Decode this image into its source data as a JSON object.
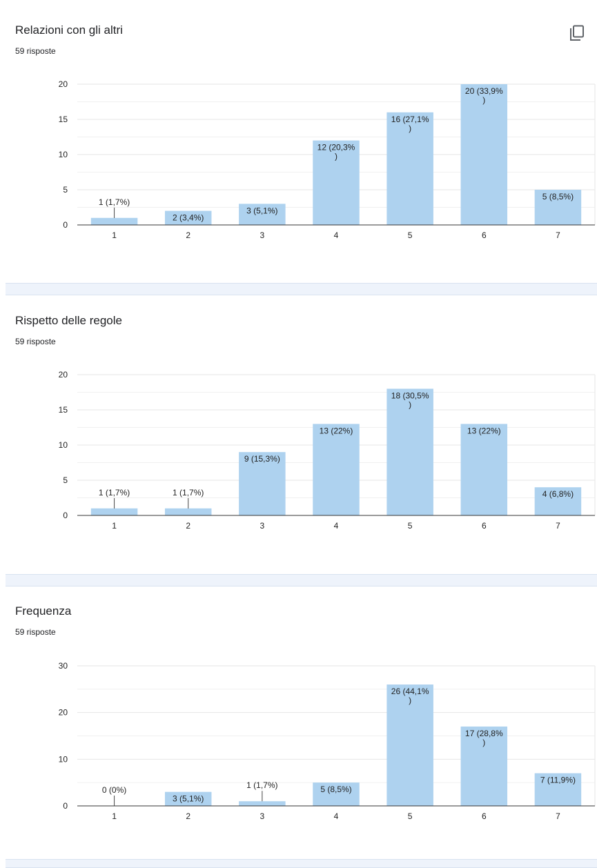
{
  "charts": [
    {
      "title": "Relazioni con gli altri",
      "responses": "59 risposte"
    },
    {
      "title": "Rispetto delle regole",
      "responses": "59 risposte"
    },
    {
      "title": "Frequenza",
      "responses": "59 risposte"
    }
  ],
  "icons": {
    "copy": "copy-icon"
  },
  "colors": {
    "bar": "#aed2ef",
    "grid": "#e6e6e6",
    "axis": "#333333",
    "separator": "#eef3fb"
  },
  "chart_data": [
    {
      "type": "bar",
      "title": "Relazioni con gli altri",
      "categories": [
        "1",
        "2",
        "3",
        "4",
        "5",
        "6",
        "7"
      ],
      "values": [
        1,
        2,
        3,
        12,
        16,
        20,
        5
      ],
      "labels": [
        "1 (1,7%)",
        "2 (3,4%)",
        "3 (5,1%)",
        "12 (20,3%\n)",
        "16 (27,1%\n)",
        "20 (33,9%\n)",
        "5 (8,5%)"
      ],
      "yticks": [
        0,
        5,
        10,
        15,
        20
      ],
      "ylim": [
        0,
        20
      ],
      "grid": true
    },
    {
      "type": "bar",
      "title": "Rispetto delle regole",
      "categories": [
        "1",
        "2",
        "3",
        "4",
        "5",
        "6",
        "7"
      ],
      "values": [
        1,
        1,
        9,
        13,
        18,
        13,
        4
      ],
      "labels": [
        "1 (1,7%)",
        "1 (1,7%)",
        "9 (15,3%)",
        "13 (22%)",
        "18 (30,5%\n)",
        "13 (22%)",
        "4 (6,8%)"
      ],
      "yticks": [
        0,
        5,
        10,
        15,
        20
      ],
      "ylim": [
        0,
        20
      ],
      "grid": true
    },
    {
      "type": "bar",
      "title": "Frequenza",
      "categories": [
        "1",
        "2",
        "3",
        "4",
        "5",
        "6",
        "7"
      ],
      "values": [
        0,
        3,
        1,
        5,
        26,
        17,
        7
      ],
      "labels": [
        "0 (0%)",
        "3 (5,1%)",
        "1 (1,7%)",
        "5 (8,5%)",
        "26 (44,1%\n)",
        "17 (28,8%\n)",
        "7 (11,9%)"
      ],
      "yticks": [
        0,
        10,
        20,
        30
      ],
      "ylim": [
        0,
        30
      ],
      "grid": true
    }
  ]
}
